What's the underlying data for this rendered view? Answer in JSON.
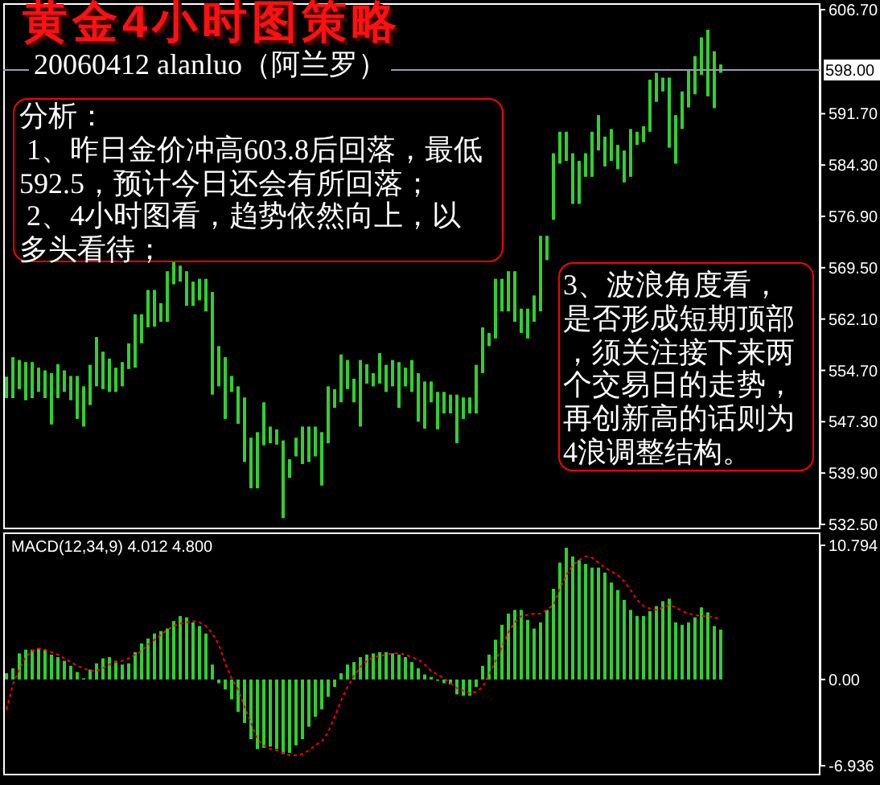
{
  "chart_data": [
    {
      "type": "bar",
      "title": "黄金4小时图策略",
      "subtitle": "20060412 alanluo（阿兰罗）",
      "annotations": [
        "分析：\n 1、昨日金价冲高603.8后回落，最低592.5，预计今日还会有所回落；\n 2、4小时图看，趋势依然向上，以多头看待；",
        "3、波浪角度看，是否形成短期顶部，须关注接下来两个交易日的走势，再创新高的话则为4浪调整结构。"
      ],
      "categories": [
        null,
        null,
        null,
        null,
        null,
        null,
        null,
        null,
        null,
        null,
        null,
        null,
        null,
        null,
        null,
        null,
        null,
        null,
        null,
        null,
        null,
        null,
        null,
        null,
        null,
        null,
        null,
        null,
        null,
        null,
        null,
        null,
        null,
        null,
        null,
        null,
        null,
        null,
        null,
        null,
        null,
        null,
        null,
        null,
        null,
        null,
        null,
        null,
        null,
        null,
        null,
        null,
        null,
        null,
        null,
        null,
        null,
        null,
        null,
        null,
        null,
        null,
        null,
        null,
        null,
        null,
        null,
        null,
        null,
        null,
        null,
        null,
        null,
        null,
        null,
        null,
        null,
        null,
        null,
        null,
        null,
        null,
        null,
        null,
        null,
        null,
        null,
        null,
        null,
        null,
        null,
        null,
        null,
        null,
        null,
        null,
        null,
        null,
        null,
        null,
        null,
        null,
        null,
        null,
        null,
        null,
        null,
        null,
        null,
        null,
        null,
        null,
        null,
        null,
        null,
        null,
        null,
        null,
        null,
        null,
        null,
        null,
        null,
        null,
        null,
        null,
        null
      ],
      "base": [
        550.7,
        550.7,
        552.0,
        550.4,
        550.7,
        551.6,
        550.7,
        546.9,
        550.7,
        551.6,
        550.4,
        547.7,
        546.6,
        549.7,
        552.4,
        552.0,
        551.6,
        551.6,
        552.4,
        554.9,
        555.1,
        558.6,
        560.9,
        561.0,
        561.7,
        561.7,
        567.1,
        567.5,
        564.0,
        564.0,
        564.8,
        563.2,
        551.2,
        552.4,
        547.7,
        551.6,
        547.0,
        541.5,
        537.7,
        537.7,
        543.9,
        544.2,
        544.0,
        533.4,
        539.2,
        542.3,
        541.2,
        541.5,
        542.3,
        538.1,
        544.2,
        549.3,
        550.1,
        552.0,
        550.1,
        546.6,
        552.8,
        552.4,
        552.8,
        551.6,
        552.4,
        549.3,
        552.4,
        551.6,
        547.3,
        546.3,
        550.1,
        546.2,
        548.5,
        548.5,
        544.2,
        547.7,
        548.5,
        548.5,
        554.3,
        558.2,
        559.3,
        563.2,
        563.2,
        561.7,
        560.1,
        559.3,
        561.7,
        563.2,
        570.6,
        576.4,
        584.5,
        584.9,
        578.7,
        578.7,
        582.6,
        582.6,
        586.4,
        584.1,
        584.9,
        583.7,
        581.8,
        582.6,
        587.2,
        587.6,
        589.1,
        593.4,
        594.9,
        586.8,
        584.5,
        589.5,
        592.6,
        594.5,
        597.3,
        594.2,
        592.5,
        597.6,
        null,
        null,
        null,
        null,
        null,
        null,
        null,
        null,
        null,
        null,
        null,
        null,
        null,
        null,
        null
      ],
      "values": [
        3.1,
        5.9,
        4.2,
        5.5,
        5.2,
        3.5,
        4.0,
        7.4,
        4.9,
        3.1,
        3.5,
        6.2,
        5.8,
        5.8,
        7.1,
        5.4,
        4.8,
        3.5,
        3.5,
        3.7,
        7.7,
        4.2,
        5.4,
        5.3,
        2.7,
        7.3,
        3.5,
        2.3,
        5.0,
        3.5,
        3.1,
        4.7,
        14.8,
        5.8,
        8.9,
        2.3,
        5.4,
        9.3,
        7.3,
        8.1,
        6.2,
        2.4,
        2.2,
        11.2,
        2.7,
        2.7,
        5.4,
        5.1,
        4.3,
        7.7,
        8.2,
        2.7,
        6.9,
        4.2,
        3.4,
        9.6,
        2.8,
        1.9,
        4.4,
        3.9,
        3.8,
        6.6,
        2.7,
        4.6,
        7.0,
        6.8,
        3.0,
        5.4,
        3.1,
        2.7,
        7.0,
        3.1,
        2.3,
        7.0,
        6.6,
        1.9,
        8.6,
        4.7,
        5.8,
        7.3,
        3.5,
        4.3,
        3.8,
        10.9,
        3.5,
        9.6,
        4.6,
        4.2,
        7.3,
        6.2,
        3.4,
        6.5,
        5.1,
        4.3,
        4.6,
        3.5,
        4.6,
        6.9,
        1.9,
        2.3,
        7.5,
        4.2,
        2.0,
        10.1,
        7.0,
        5.4,
        5.4,
        5.5,
        5.4,
        9.6,
        8.2,
        1.2,
        null,
        null,
        null,
        null,
        null,
        null,
        null,
        null,
        null,
        null,
        null,
        null,
        null,
        null,
        null
      ],
      "color": "#2fd12f",
      "ylim": [
        532.5,
        606.7
      ],
      "yticks": [
        {
          "value": 532.5,
          "label": "532.50"
        },
        {
          "value": 539.9,
          "label": "539.90"
        },
        {
          "value": 547.3,
          "label": "547.30"
        },
        {
          "value": 554.7,
          "label": "554.70"
        },
        {
          "value": 562.1,
          "label": "562.10"
        },
        {
          "value": 569.5,
          "label": "569.50"
        },
        {
          "value": 576.9,
          "label": "576.90"
        },
        {
          "value": 584.3,
          "label": "584.30"
        },
        {
          "value": 591.7,
          "label": "591.70"
        },
        {
          "value": 606.7,
          "label": "606.70"
        }
      ],
      "ref_lines": [
        {
          "axis": "y",
          "value": 598,
          "label": "598.00",
          "color": "#9a9ab4"
        }
      ],
      "tick_labels": "y"
    },
    {
      "type": "bar",
      "title": "MACD(12,34,9) 4.012 4.800",
      "categories": [
        null,
        null,
        null,
        null,
        null,
        null,
        null,
        null,
        null,
        null,
        null,
        null,
        null,
        null,
        null,
        null,
        null,
        null,
        null,
        null,
        null,
        null,
        null,
        null,
        null,
        null,
        null,
        null,
        null,
        null,
        null,
        null,
        null,
        null,
        null,
        null,
        null,
        null,
        null,
        null,
        null,
        null,
        null,
        null,
        null,
        null,
        null,
        null,
        null,
        null,
        null,
        null,
        null,
        null,
        null,
        null,
        null,
        null,
        null,
        null,
        null,
        null,
        null,
        null,
        null,
        null,
        null,
        null,
        null,
        null,
        null,
        null,
        null,
        null,
        null,
        null,
        null,
        null,
        null,
        null,
        null,
        null,
        null,
        null,
        null,
        null,
        null,
        null,
        null,
        null,
        null,
        null,
        null,
        null,
        null,
        null,
        null,
        null,
        null,
        null,
        null,
        null,
        null,
        null,
        null,
        null,
        null,
        null,
        null,
        null,
        null,
        null,
        null,
        null,
        null,
        null,
        null,
        null,
        null,
        null,
        null,
        null,
        null,
        null,
        null,
        null,
        null
      ],
      "series": [
        {
          "color": "#2fd12f",
          "values": [
            0.5,
            0.9,
            2.1,
            2.4,
            2.4,
            2.5,
            2.4,
            2.0,
            1.8,
            1.5,
            1.1,
            0.6,
            0.1,
            0.8,
            1.3,
            1.7,
            1.8,
            1.5,
            1.2,
            1.3,
            2.2,
            2.9,
            3.3,
            3.7,
            3.9,
            4.1,
            4.7,
            5.1,
            5.0,
            4.6,
            4.3,
            3.7,
            1.2,
            -0.3,
            -0.8,
            -1.6,
            -2.6,
            -3.5,
            -4.8,
            -5.6,
            -5.5,
            -5.4,
            -5.6,
            -6.0,
            -5.9,
            -5.3,
            -4.8,
            -3.8,
            -3.0,
            -2.4,
            -1.4,
            -0.6,
            0.5,
            1.2,
            1.4,
            1.8,
            2.0,
            2.1,
            2.2,
            2.2,
            2.1,
            2.0,
            1.8,
            1.4,
            0.9,
            0.4,
            0.2,
            -0.1,
            -0.3,
            -0.4,
            -1.2,
            -1.3,
            -1.3,
            -0.6,
            1.1,
            2.0,
            3.2,
            4.4,
            5.3,
            5.6,
            5.6,
            4.8,
            4.1,
            4.6,
            5.6,
            7.3,
            9.4,
            10.6,
            9.9,
            9.6,
            9.3,
            9.0,
            9.0,
            8.6,
            7.8,
            7.2,
            6.4,
            5.6,
            5.1,
            5.1,
            5.5,
            5.9,
            6.3,
            6.5,
            4.6,
            4.4,
            4.6,
            5.0,
            5.8,
            5.4,
            4.3,
            4.012,
            null,
            null,
            null,
            null,
            null,
            null,
            null,
            null,
            null,
            null,
            null,
            null,
            null,
            null,
            null
          ]
        },
        {
          "type": "line",
          "color": "#ff0000",
          "values": [
            -2.4,
            -0.4,
            0.8,
            1.8,
            2.3,
            2.5,
            2.4,
            2.2,
            2.0,
            1.7,
            1.4,
            1.1,
            0.9,
            0.7,
            0.7,
            0.9,
            1.2,
            1.4,
            1.5,
            1.7,
            2.0,
            2.3,
            2.8,
            3.2,
            3.6,
            4.0,
            4.3,
            4.5,
            4.6,
            4.7,
            4.6,
            4.3,
            3.7,
            2.8,
            1.3,
            0.1,
            -0.8,
            -2.2,
            -3.5,
            -4.8,
            -5.3,
            -5.6,
            -5.7,
            -5.9,
            -6.1,
            -6.1,
            -6.0,
            -5.7,
            -5.3,
            -5.0,
            -4.2,
            -3.0,
            -1.7,
            -0.6,
            0.3,
            1.0,
            1.5,
            1.8,
            1.9,
            2.0,
            2.1,
            2.1,
            2.0,
            1.8,
            1.6,
            1.2,
            0.7,
            0.4,
            0.1,
            -0.3,
            -0.7,
            -0.9,
            -1.1,
            -1.0,
            -0.6,
            0.4,
            1.5,
            2.6,
            3.8,
            4.6,
            5.1,
            5.2,
            5.3,
            5.3,
            5.6,
            6.0,
            7.3,
            8.4,
            9.2,
            9.6,
            9.9,
            9.8,
            9.4,
            9.0,
            8.7,
            8.4,
            7.9,
            7.2,
            6.4,
            5.9,
            5.7,
            5.6,
            5.8,
            6.0,
            5.8,
            5.5,
            5.3,
            5.2,
            5.1,
            5.1,
            5.0,
            4.8,
            null,
            null,
            null,
            null,
            null,
            null,
            null,
            null,
            null,
            null,
            null,
            null,
            null,
            null,
            null
          ]
        }
      ],
      "line_style": "dotted",
      "ylim": [
        -6.936,
        10.794
      ],
      "yticks": [
        -6.936,
        {
          "value": 0,
          "label": "0.00"
        },
        10.794
      ],
      "tick_labels": "y"
    }
  ]
}
